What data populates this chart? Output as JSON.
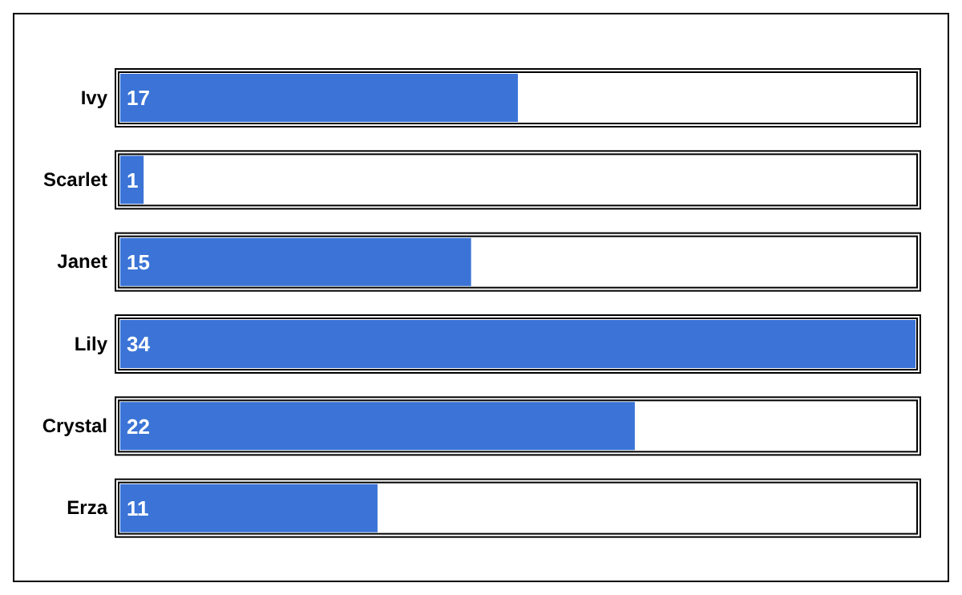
{
  "chart_data": {
    "type": "bar",
    "orientation": "horizontal",
    "categories": [
      "Ivy",
      "Scarlet",
      "Janet",
      "Lily",
      "Crystal",
      "Erza"
    ],
    "values": [
      17,
      1,
      15,
      34,
      22,
      11
    ],
    "color": "#3b74d6",
    "data_labels": true
  }
}
